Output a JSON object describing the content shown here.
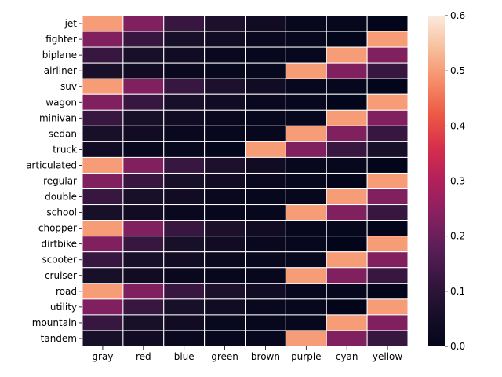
{
  "chart_data": {
    "type": "heatmap",
    "title": "",
    "xlabel": "",
    "ylabel": "",
    "columns": [
      "gray",
      "red",
      "blue",
      "green",
      "brown",
      "purple",
      "cyan",
      "yellow"
    ],
    "rows": [
      "jet",
      "fighter",
      "biplane",
      "airliner",
      "suv",
      "wagon",
      "minivan",
      "sedan",
      "truck",
      "articulated",
      "regular",
      "double",
      "school",
      "chopper",
      "dirtbike",
      "scooter",
      "cruiser",
      "road",
      "utility",
      "mountain",
      "tandem"
    ],
    "values": [
      [
        0.5,
        0.23,
        0.12,
        0.07,
        0.04,
        0.01,
        0.01,
        0.0
      ],
      [
        0.23,
        0.12,
        0.06,
        0.04,
        0.02,
        0.01,
        0.0,
        0.5
      ],
      [
        0.12,
        0.06,
        0.04,
        0.02,
        0.01,
        0.01,
        0.5,
        0.23
      ],
      [
        0.06,
        0.04,
        0.02,
        0.01,
        0.01,
        0.5,
        0.23,
        0.12
      ],
      [
        0.5,
        0.23,
        0.12,
        0.07,
        0.04,
        0.01,
        0.01,
        0.0
      ],
      [
        0.23,
        0.12,
        0.06,
        0.04,
        0.02,
        0.01,
        0.0,
        0.5
      ],
      [
        0.12,
        0.06,
        0.04,
        0.02,
        0.01,
        0.01,
        0.5,
        0.23
      ],
      [
        0.06,
        0.04,
        0.02,
        0.01,
        0.01,
        0.5,
        0.23,
        0.12
      ],
      [
        0.04,
        0.01,
        0.01,
        0.0,
        0.5,
        0.23,
        0.12,
        0.06
      ],
      [
        0.5,
        0.23,
        0.12,
        0.07,
        0.04,
        0.01,
        0.01,
        0.0
      ],
      [
        0.23,
        0.12,
        0.06,
        0.04,
        0.02,
        0.01,
        0.0,
        0.5
      ],
      [
        0.12,
        0.06,
        0.04,
        0.02,
        0.01,
        0.01,
        0.5,
        0.23
      ],
      [
        0.06,
        0.04,
        0.02,
        0.01,
        0.01,
        0.5,
        0.23,
        0.12
      ],
      [
        0.5,
        0.23,
        0.12,
        0.07,
        0.04,
        0.01,
        0.01,
        0.0
      ],
      [
        0.23,
        0.12,
        0.06,
        0.04,
        0.02,
        0.01,
        0.0,
        0.5
      ],
      [
        0.12,
        0.06,
        0.04,
        0.02,
        0.01,
        0.01,
        0.5,
        0.23
      ],
      [
        0.06,
        0.04,
        0.02,
        0.01,
        0.01,
        0.5,
        0.23,
        0.12
      ],
      [
        0.5,
        0.23,
        0.12,
        0.07,
        0.04,
        0.01,
        0.01,
        0.0
      ],
      [
        0.23,
        0.12,
        0.06,
        0.04,
        0.02,
        0.01,
        0.0,
        0.5
      ],
      [
        0.12,
        0.06,
        0.04,
        0.02,
        0.01,
        0.01,
        0.5,
        0.23
      ],
      [
        0.06,
        0.04,
        0.02,
        0.01,
        0.01,
        0.5,
        0.23,
        0.12
      ]
    ],
    "colorbar": {
      "range": [
        0.0,
        0.6
      ],
      "ticks": [
        0.0,
        0.1,
        0.2,
        0.3,
        0.4,
        0.5,
        0.6
      ],
      "tick_labels": [
        "0.0",
        "0.1",
        "0.2",
        "0.3",
        "0.4",
        "0.5",
        "0.6"
      ],
      "colormap": "rocket"
    },
    "cell_border_color": "#ffffff",
    "grid": false,
    "legend": "colorbar-right"
  }
}
